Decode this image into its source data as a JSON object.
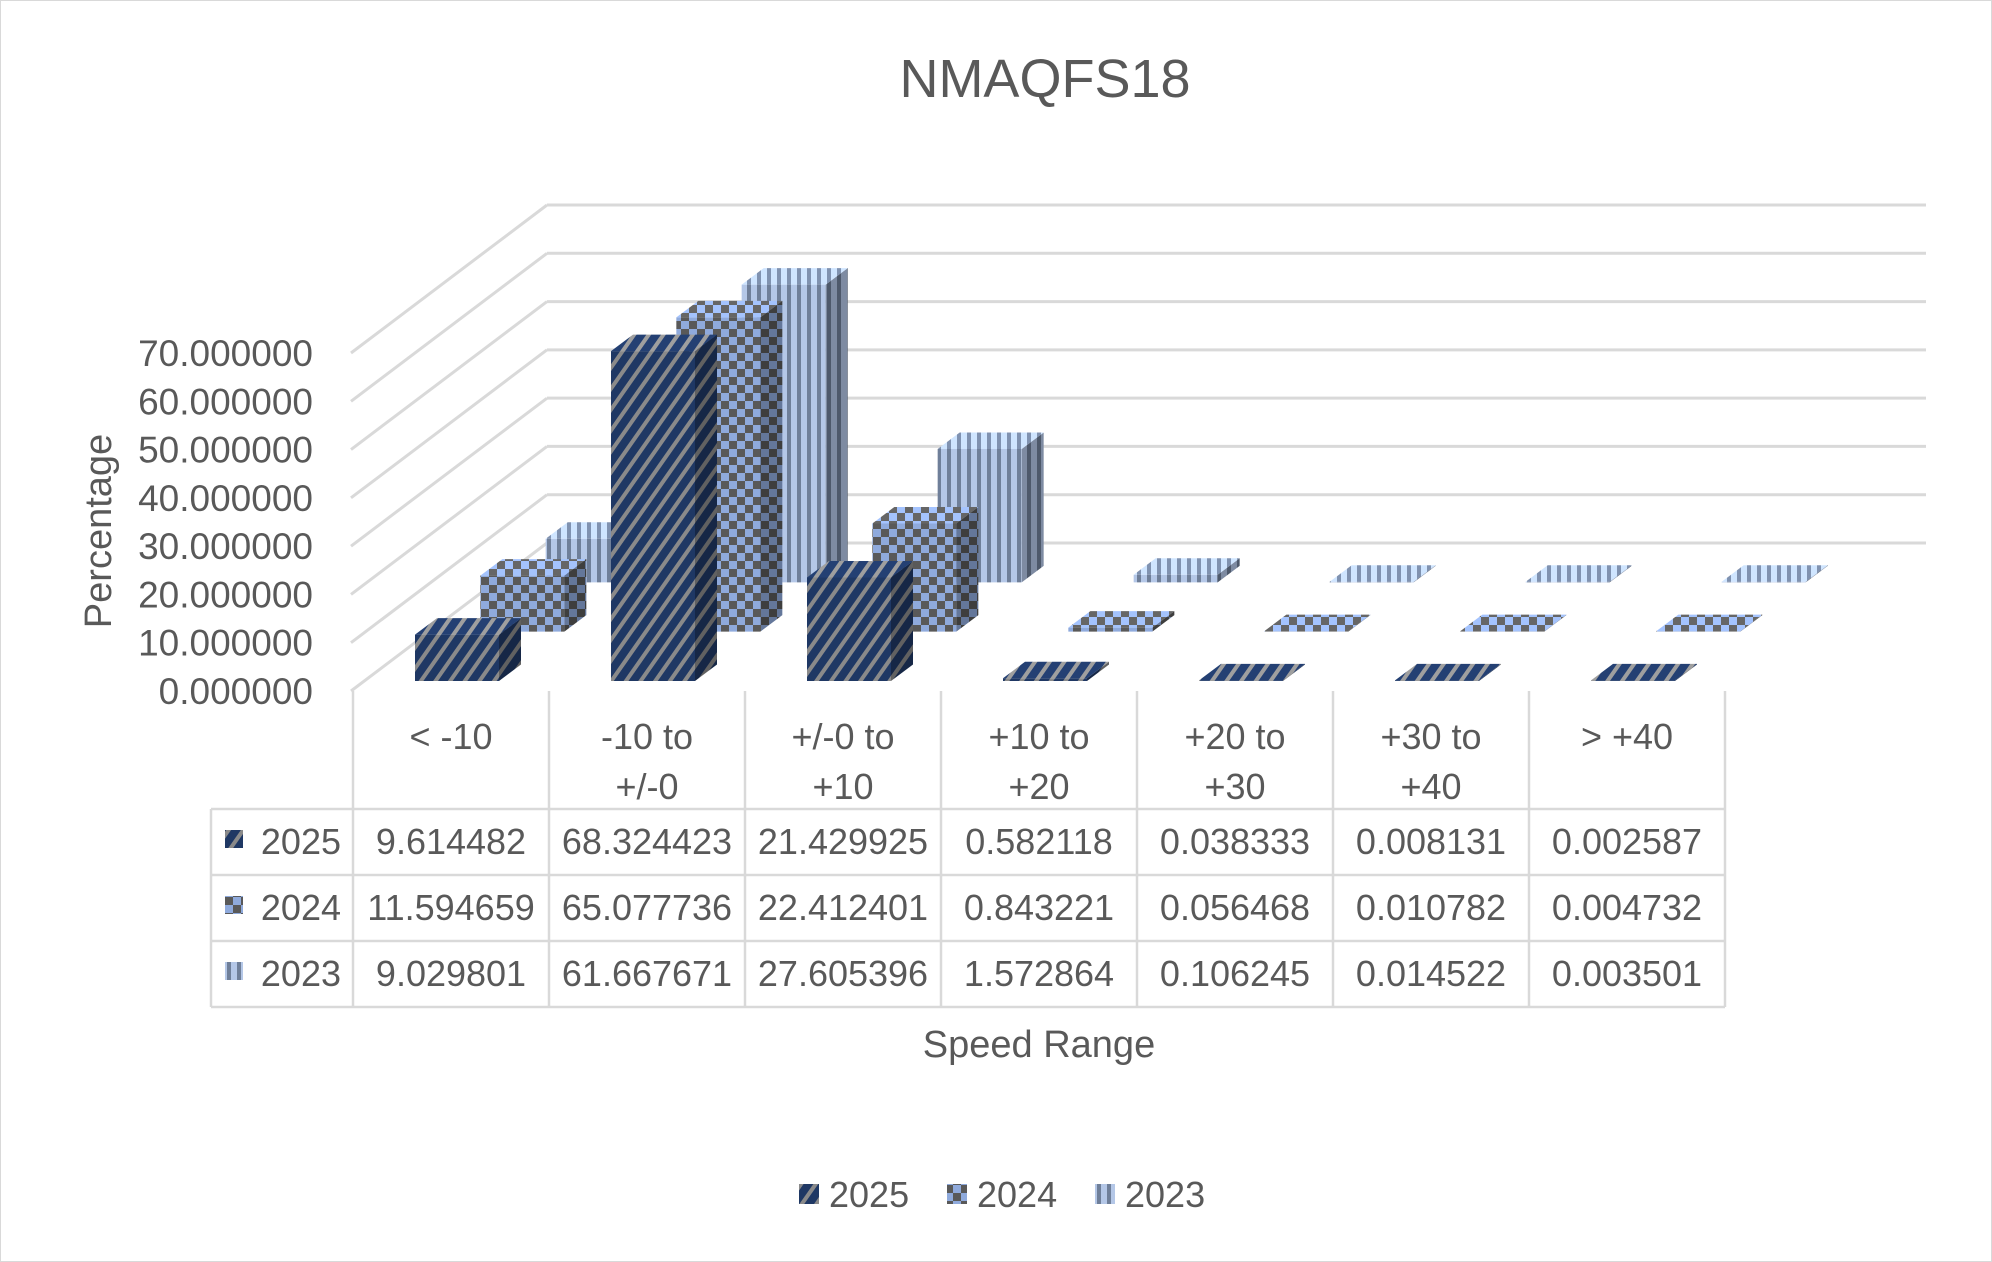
{
  "chart_data": {
    "type": "bar",
    "variant": "3d-column-with-data-table",
    "title": "NMAQFS18",
    "xlabel": "Speed Range",
    "ylabel": "Percentage",
    "ylim": [
      0,
      70
    ],
    "yticks": [
      "0.000000",
      "10.000000",
      "20.000000",
      "30.000000",
      "40.000000",
      "50.000000",
      "60.000000",
      "70.000000"
    ],
    "categories": [
      [
        "< -10"
      ],
      [
        "-10 to",
        "+/-0"
      ],
      [
        "+/-0 to",
        "+10"
      ],
      [
        "+10 to",
        "+20"
      ],
      [
        "+20 to",
        "+30"
      ],
      [
        "+30 to",
        "+40"
      ],
      [
        "> +40"
      ]
    ],
    "series": [
      {
        "name": "2025",
        "color": "#1f3864",
        "pattern": "diagonal",
        "values": [
          9.614482,
          68.324423,
          21.429925,
          0.582118,
          0.038333,
          0.008131,
          0.002587
        ]
      },
      {
        "name": "2024",
        "color": "#8faadc",
        "pattern": "checker",
        "values": [
          11.594659,
          65.077736,
          22.412401,
          0.843221,
          0.056468,
          0.010782,
          0.004732
        ]
      },
      {
        "name": "2023",
        "color": "#b4c7e7",
        "pattern": "vertical",
        "values": [
          9.029801,
          61.667671,
          27.605396,
          1.572864,
          0.106245,
          0.014522,
          0.003501
        ]
      }
    ],
    "table": {
      "rows": [
        {
          "series": "2025",
          "cells": [
            "9.614482",
            "68.324423",
            "21.429925",
            "0.582118",
            "0.038333",
            "0.008131",
            "0.002587"
          ]
        },
        {
          "series": "2024",
          "cells": [
            "11.594659",
            "65.077736",
            "22.412401",
            "0.843221",
            "0.056468",
            "0.010782",
            "0.004732"
          ]
        },
        {
          "series": "2023",
          "cells": [
            "9.029801",
            "61.667671",
            "27.605396",
            "1.572864",
            "0.106245",
            "0.014522",
            "0.003501"
          ]
        }
      ]
    },
    "legend": {
      "position": "bottom",
      "entries": [
        "2025",
        "2024",
        "2023"
      ]
    },
    "grid": true
  }
}
